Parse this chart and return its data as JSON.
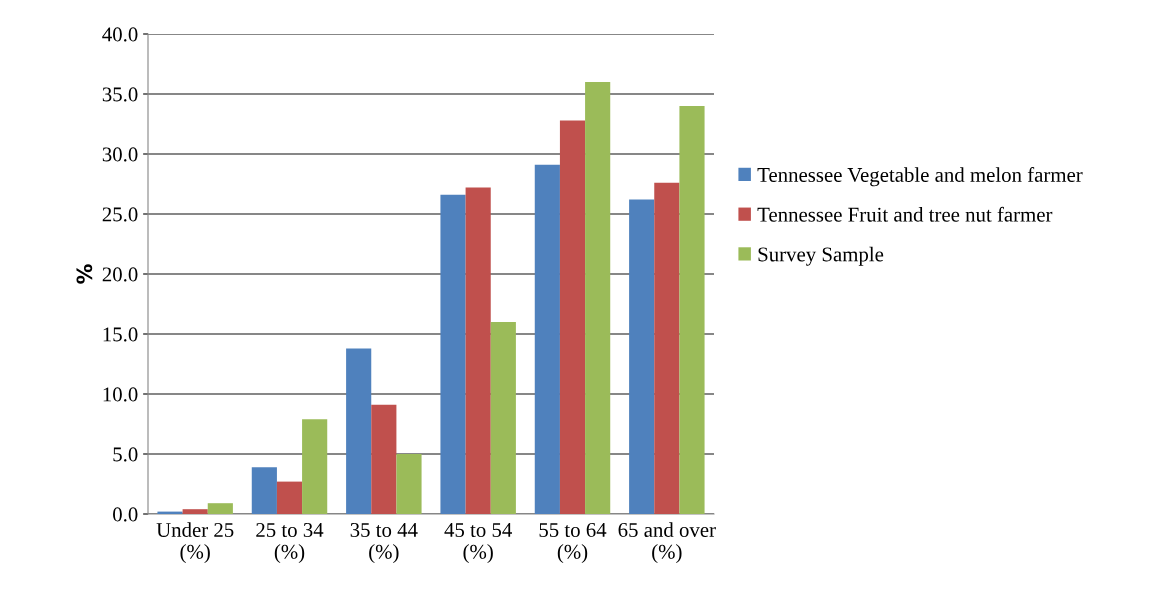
{
  "chart_data": {
    "type": "bar",
    "ylabel": "%",
    "categories": [
      "Under 25 (%)",
      "25 to 34 (%)",
      "35 to 44 (%)",
      "45 to 54 (%)",
      "55 to 64 (%)",
      "65 and over (%)"
    ],
    "series": [
      {
        "name": "Tennessee Vegetable and melon farmer",
        "color": "#4f81bd",
        "values": [
          0.2,
          3.9,
          13.8,
          26.6,
          29.1,
          26.2
        ]
      },
      {
        "name": "Tennessee Fruit and tree nut farmer",
        "color": "#c0504d",
        "values": [
          0.4,
          2.7,
          9.1,
          27.2,
          32.8,
          27.6
        ]
      },
      {
        "name": "Survey Sample",
        "color": "#9bbb59",
        "values": [
          0.9,
          7.9,
          5.0,
          16.0,
          36.0,
          34.0
        ]
      }
    ],
    "ylim": [
      0,
      40
    ],
    "yticks": [
      {
        "value": 0,
        "label": "0.0"
      },
      {
        "value": 5,
        "label": "5.0"
      },
      {
        "value": 10,
        "label": "10.0"
      },
      {
        "value": 15,
        "label": "15.0"
      },
      {
        "value": 20,
        "label": "20.0"
      },
      {
        "value": 25,
        "label": "25.0"
      },
      {
        "value": 30,
        "label": "30.0"
      },
      {
        "value": 35,
        "label": "35.0"
      },
      {
        "value": 40,
        "label": "40.0"
      }
    ],
    "grid": "y",
    "legend": "right"
  }
}
